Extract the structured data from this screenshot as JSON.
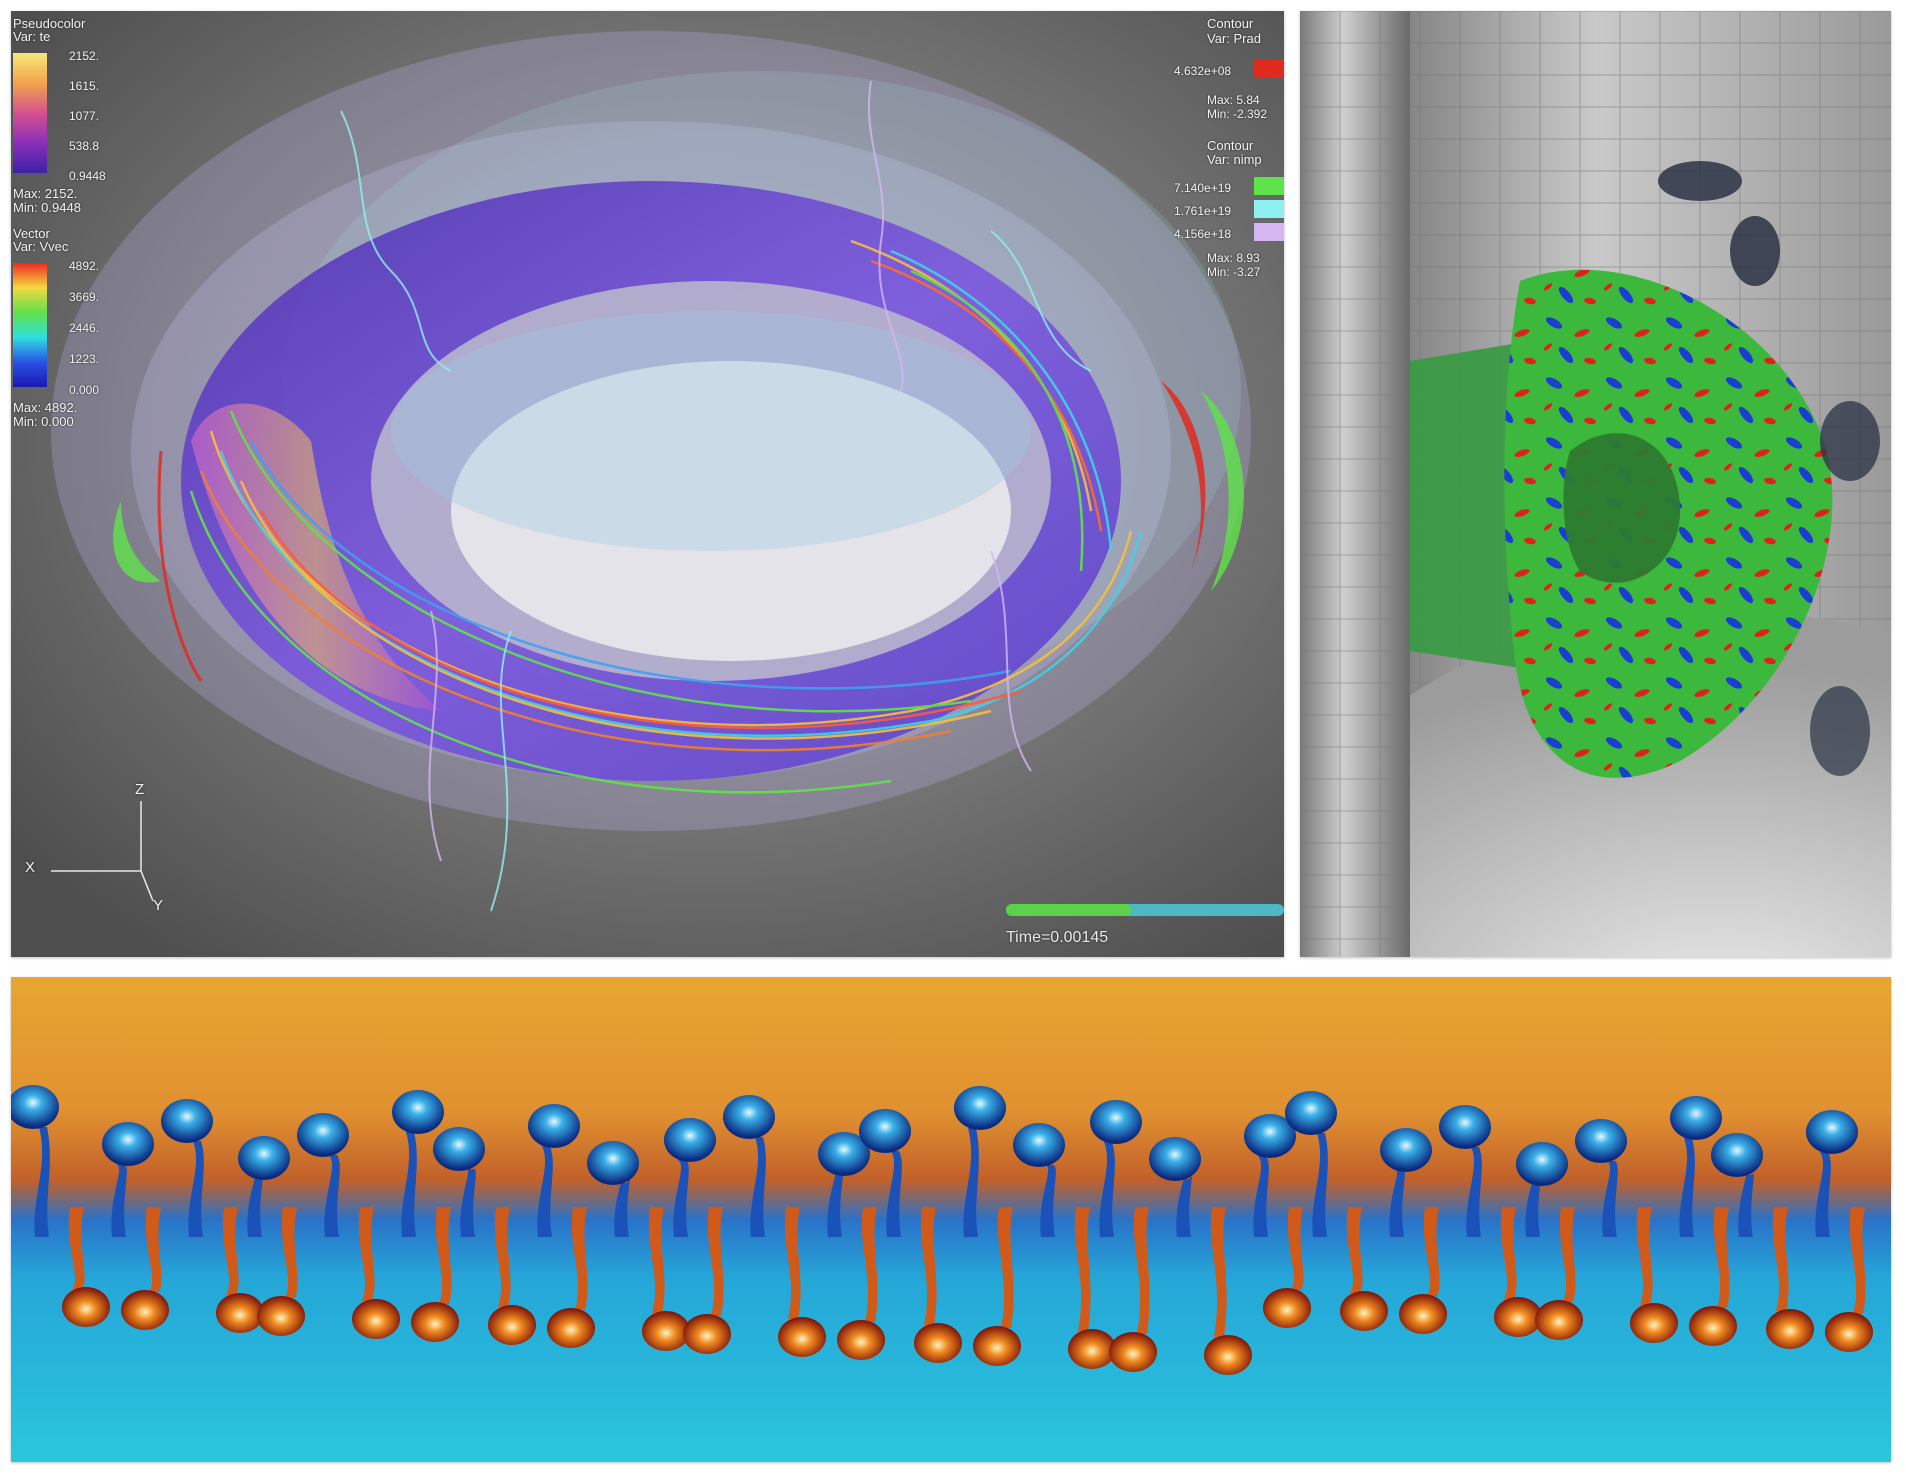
{
  "legend_pseudocolor": {
    "title": "Pseudocolor",
    "var": "Var: te",
    "ticks": [
      "2152.",
      "1615.",
      "1077.",
      "538.8",
      "0.9448"
    ],
    "max": "Max: 2152.",
    "min": "Min: 0.9448"
  },
  "legend_vector": {
    "title": "Vector",
    "var": "Var: Vvec",
    "ticks": [
      "4892.",
      "3669.",
      "2446.",
      "1223.",
      "0.000"
    ],
    "max": "Max: 4892.",
    "min": "Min: 0.000"
  },
  "legend_contour_prad": {
    "title": "Contour",
    "var": "Var: Prad",
    "levels": [
      {
        "label": "4.632e+08",
        "color": "#e02a1e"
      }
    ],
    "max": "Max: 5.84",
    "min": "Min: -2.392"
  },
  "legend_contour_nimp": {
    "title": "Contour",
    "var": "Var: nimp",
    "levels": [
      {
        "label": "7.140e+19",
        "color": "#5fe34a"
      },
      {
        "label": "1.761e+19",
        "color": "#8ff0f2"
      },
      {
        "label": "4.156e+18",
        "color": "#d6b6f0"
      }
    ],
    "max": "Max: 8.93",
    "min": "Min: -3.27"
  },
  "axes": {
    "x": "X",
    "y": "Y",
    "z": "Z"
  },
  "time_slider": {
    "label": "Time=0.00145",
    "progress": 0.45,
    "fill_color": "#5cd14a",
    "track_color": "#4fb8c4"
  },
  "colors": {
    "torus_plasma": "#6a3fd0",
    "rt_hot": "#e0801a",
    "rt_cold": "#1a5ab8",
    "rt_background_top": "#e7a630",
    "rt_background_bottom": "#2bc6dc"
  }
}
